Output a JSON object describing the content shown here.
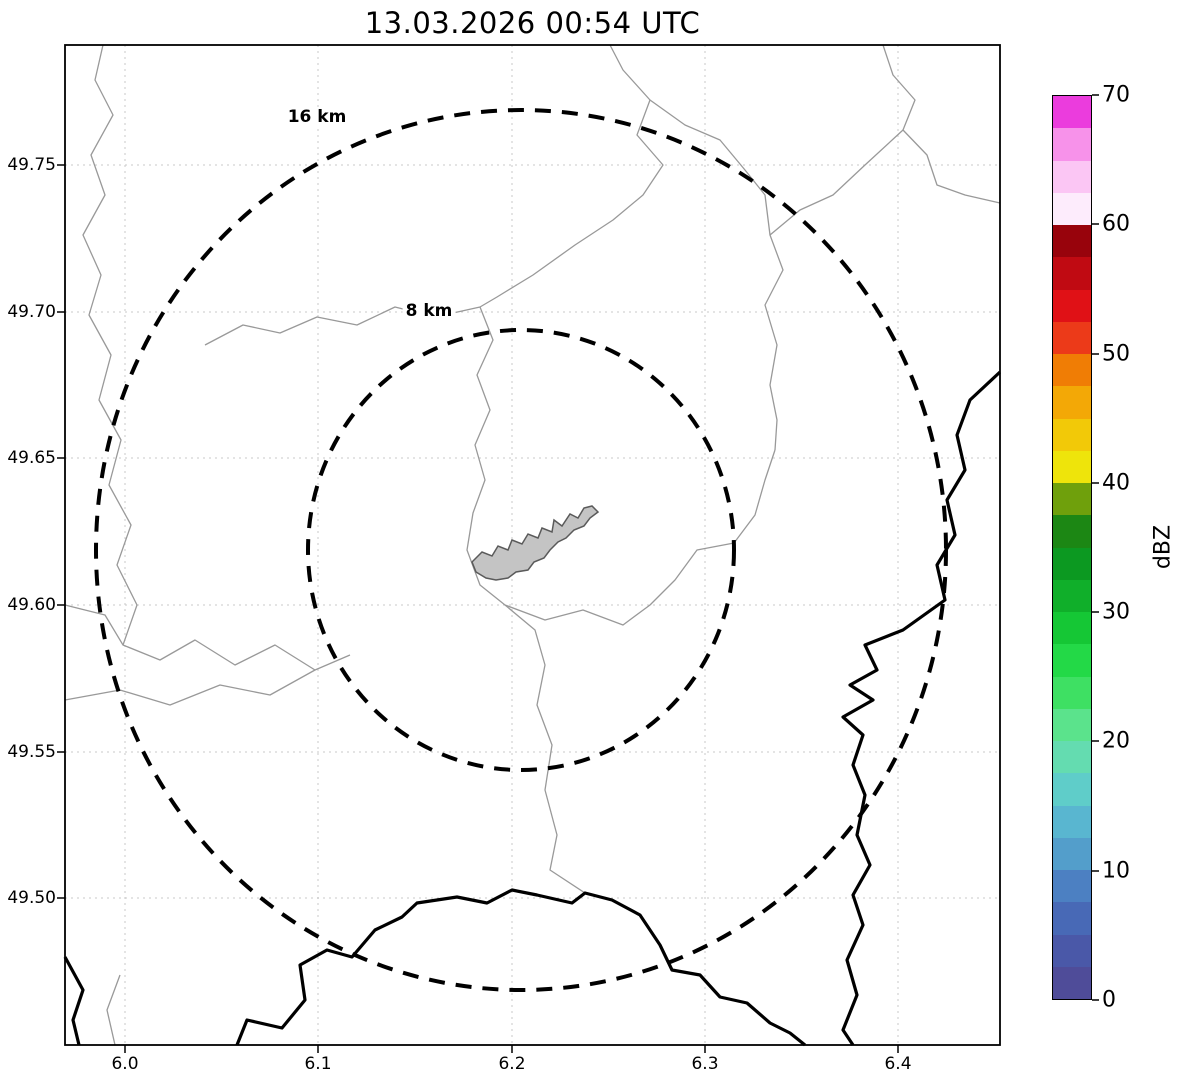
{
  "title": "13.03.2026 00:54 UTC",
  "axes": {
    "x_ticks": [
      "6.0",
      "6.1",
      "6.2",
      "6.3",
      "6.4"
    ],
    "y_ticks": [
      "49.75",
      "49.70",
      "49.65",
      "49.60",
      "49.55",
      "49.50"
    ]
  },
  "rings": [
    {
      "label": "16 km",
      "radius_km": 16
    },
    {
      "label": "8 km",
      "radius_km": 8
    }
  ],
  "colorbar": {
    "label": "dBZ",
    "min": 0,
    "max": 70,
    "ticks": [
      "70",
      "60",
      "50",
      "40",
      "30",
      "20",
      "10",
      "0"
    ],
    "colors_bottom_to_top": [
      "#4f4c99",
      "#4a58a8",
      "#4869b6",
      "#4c80c2",
      "#539ecb",
      "#59b6d0",
      "#5fcdc9",
      "#64dcb0",
      "#5be38c",
      "#3ee063",
      "#23d947",
      "#15c735",
      "#10af2a",
      "#0c9921",
      "#1c8714",
      "#6fa00c",
      "#eee40b",
      "#f2c908",
      "#f3a806",
      "#f07d05",
      "#ec3a19",
      "#e01116",
      "#c00a12",
      "#98030c",
      "#fdecfc",
      "#fbc6f4",
      "#f792ea",
      "#eb3cdd"
    ]
  },
  "map_colors": {
    "city_fill": "#c4c4c4",
    "city_outline": "#5a5a5a",
    "river_line": "#999999",
    "border_line": "#000000",
    "grid_line": "#c8c8c8"
  },
  "chart_data": {
    "type": "map",
    "title": "13.03.2026 00:54 UTC",
    "x_axis_ticks_lon": [
      6.0,
      6.1,
      6.2,
      6.3,
      6.4
    ],
    "y_axis_ticks_lat": [
      49.5,
      49.55,
      49.6,
      49.65,
      49.7,
      49.75
    ],
    "range_rings_km": [
      8,
      16
    ],
    "ring_center_lon_lat": [
      6.2,
      49.62
    ],
    "colorbar": {
      "label": "dBZ",
      "min": 0,
      "max": 70,
      "tick_step": 10
    },
    "radar_echoes": []
  }
}
